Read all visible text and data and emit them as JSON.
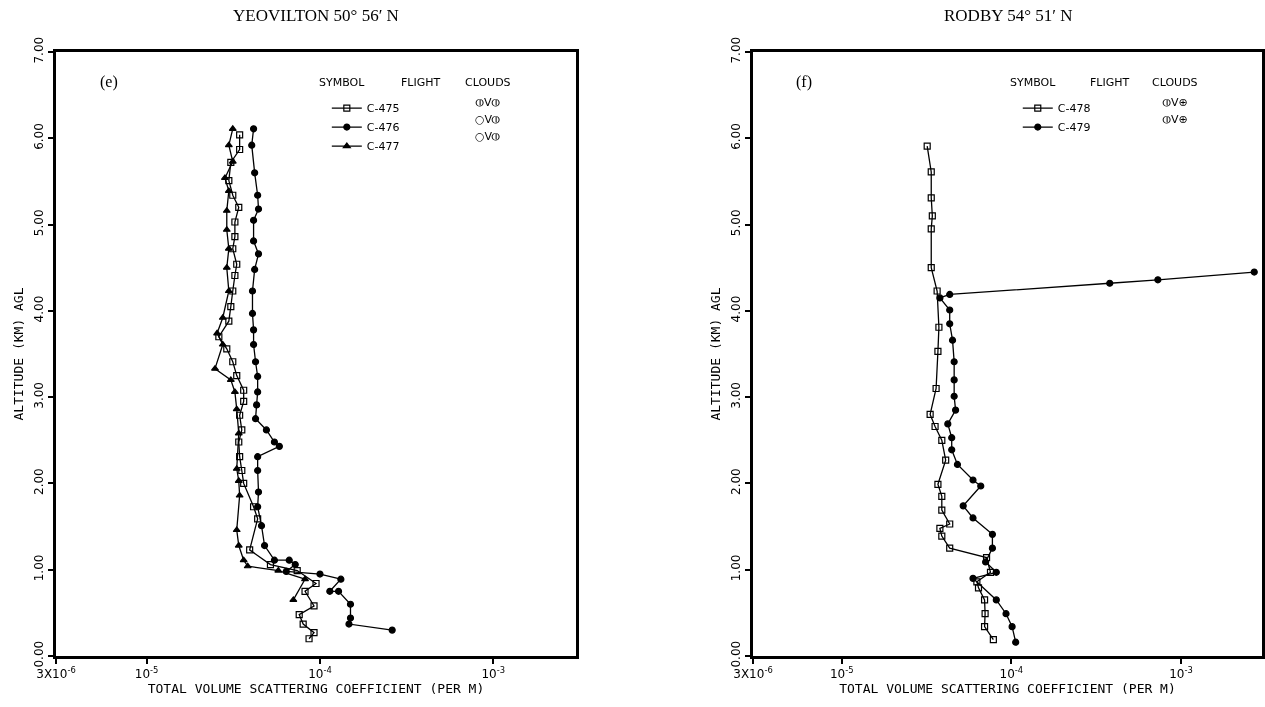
{
  "chart_data": [
    {
      "type": "line",
      "title": "YEOVILTON 50° 56′ N",
      "xlabel": "TOTAL VOLUME SCATTERING COEFFICIENT (PER M)",
      "ylabel": "ALTITUDE (KM) AGL",
      "log": "x",
      "legend": "top right",
      "xlim": [
        3e-06,
        0.003
      ],
      "xticks": [
        {
          "value": 3e-06,
          "label": "3X10$^{-6}$"
        },
        {
          "value": 1e-05,
          "label": "10$^{-5}$"
        },
        {
          "value": 0.0001,
          "label": "10$^{-4}$"
        },
        {
          "value": 0.001,
          "label": "10$^{-3}$"
        }
      ],
      "ylim": [
        0,
        7
      ],
      "yticks": [
        {
          "value": 0,
          "label": "0.00"
        },
        {
          "value": 1,
          "label": "1.00"
        },
        {
          "value": 2,
          "label": "2.00"
        },
        {
          "value": 3,
          "label": "3.00"
        },
        {
          "value": 4,
          "label": "4.00"
        },
        {
          "value": 5,
          "label": "5.00"
        },
        {
          "value": 6,
          "label": "6.00"
        },
        {
          "value": 7,
          "label": "7.00"
        }
      ],
      "annotations": [
        "(e)",
        "SYMBOL",
        "FLIGHT",
        "CLOUDS",
        "⦶V⦶",
        "○V⦶",
        "○V⦶"
      ],
      "series": [
        {
          "name": "C-475",
          "color": "#000000",
          "marker": "square",
          "x": [
            3.44e-05,
            3.44e-05,
            3.06e-05,
            2.98e-05,
            3.14e-05,
            3.4e-05,
            3.23e-05,
            3.23e-05,
            3.14e-05,
            3.31e-05,
            3.23e-05,
            3.14e-05,
            3.06e-05,
            2.98e-05,
            2.61e-05,
            2.9e-05,
            3.14e-05,
            3.31e-05,
            3.63e-05,
            3.63e-05,
            3.44e-05,
            3.54e-05,
            3.4e-05,
            3.44e-05,
            3.54e-05,
            3.63e-05,
            4.14e-05,
            4.37e-05,
            3.93e-05,
            5.18e-05,
            7.39e-05,
            9.49e-05,
            8.2e-05,
            9.24e-05,
            7.59e-05,
            8e-05,
            9.24e-05,
            8.65e-05
          ],
          "values": [
            6.04,
            5.87,
            5.72,
            5.51,
            5.34,
            5.2,
            5.03,
            4.86,
            4.72,
            4.54,
            4.41,
            4.23,
            4.05,
            3.88,
            3.7,
            3.56,
            3.41,
            3.25,
            3.08,
            2.95,
            2.79,
            2.62,
            2.48,
            2.31,
            2.15,
            2.0,
            1.73,
            1.59,
            1.23,
            1.06,
            0.99,
            0.84,
            0.75,
            0.58,
            0.48,
            0.37,
            0.27,
            0.2
          ]
        },
        {
          "name": "C-476",
          "color": "#000000",
          "marker": "circle",
          "x": [
            4.14e-05,
            4.04e-05,
            4.2e-05,
            4.37e-05,
            4.42e-05,
            4.14e-05,
            4.14e-05,
            4.42e-05,
            4.2e-05,
            4.08e-05,
            4.08e-05,
            4.14e-05,
            4.14e-05,
            4.25e-05,
            4.37e-05,
            4.37e-05,
            4.31e-05,
            4.25e-05,
            4.91e-05,
            5.46e-05,
            5.83e-05,
            4.37e-05,
            4.37e-05,
            4.42e-05,
            4.37e-05,
            4.6e-05,
            4.79e-05,
            5.46e-05,
            6.65e-05,
            7.2e-05,
            6.39e-05,
            0.0001,
            0.000132,
            0.000114,
            0.000128,
            0.00015,
            0.00015,
            0.000147,
            0.000261
          ],
          "values": [
            6.11,
            5.92,
            5.6,
            5.34,
            5.18,
            5.05,
            4.81,
            4.66,
            4.48,
            4.23,
            3.97,
            3.78,
            3.61,
            3.41,
            3.24,
            3.06,
            2.91,
            2.75,
            2.62,
            2.48,
            2.43,
            2.31,
            2.15,
            1.9,
            1.73,
            1.51,
            1.28,
            1.11,
            1.11,
            1.06,
            0.98,
            0.95,
            0.89,
            0.75,
            0.75,
            0.6,
            0.44,
            0.37,
            0.3
          ]
        },
        {
          "name": "C-477",
          "color": "#000000",
          "marker": "triangle",
          "x": [
            3.14e-05,
            2.98e-05,
            3.14e-05,
            2.83e-05,
            2.98e-05,
            2.9e-05,
            2.9e-05,
            2.98e-05,
            2.9e-05,
            2.98e-05,
            2.75e-05,
            2.55e-05,
            2.75e-05,
            2.48e-05,
            3.06e-05,
            3.23e-05,
            3.31e-05,
            3.4e-05,
            3.31e-05,
            3.4e-05,
            3.44e-05,
            3.31e-05,
            3.4e-05,
            3.63e-05,
            3.83e-05,
            5.75e-05,
            8.2e-05,
            7.02e-05
          ],
          "values": [
            6.11,
            5.92,
            5.73,
            5.54,
            5.39,
            5.16,
            4.94,
            4.72,
            4.5,
            4.23,
            3.92,
            3.74,
            3.61,
            3.33,
            3.2,
            3.06,
            2.86,
            2.58,
            2.17,
            2.03,
            1.86,
            1.46,
            1.28,
            1.11,
            1.04,
            0.99,
            0.89,
            0.65
          ]
        }
      ]
    },
    {
      "type": "line",
      "title": "RODBY 54° 51′ N",
      "xlabel": "TOTAL VOLUME SCATTERING COEFFICIENT (PER M)",
      "ylabel": "ALTITUDE (KM) AGL",
      "log": "x",
      "legend": "top right",
      "xlim": [
        3e-06,
        0.003
      ],
      "xticks": [
        {
          "value": 3e-06,
          "label": "3X10$^{-6}$"
        },
        {
          "value": 1e-05,
          "label": "10$^{-5}$"
        },
        {
          "value": 0.0001,
          "label": "10$^{-4}$"
        },
        {
          "value": 0.001,
          "label": "10$^{-3}$"
        }
      ],
      "ylim": [
        0,
        7
      ],
      "yticks": [
        {
          "value": 0,
          "label": "0.00"
        },
        {
          "value": 1,
          "label": "1.00"
        },
        {
          "value": 2,
          "label": "2.00"
        },
        {
          "value": 3,
          "label": "3.00"
        },
        {
          "value": 4,
          "label": "4.00"
        },
        {
          "value": 5,
          "label": "5.00"
        },
        {
          "value": 6,
          "label": "6.00"
        },
        {
          "value": 7,
          "label": "7.00"
        }
      ],
      "annotations": [
        "(f)",
        "SYMBOL",
        "FLIGHT",
        "CLOUDS",
        "⦶V⊕",
        "⦶V⊕"
      ],
      "series": [
        {
          "name": "C-478",
          "color": "#000000",
          "marker": "square",
          "x": [
            3.19e-05,
            3.37e-05,
            3.37e-05,
            3.42e-05,
            3.37e-05,
            3.37e-05,
            3.65e-05,
            3.74e-05,
            3.69e-05,
            3.6e-05,
            3.32e-05,
            3.55e-05,
            3.89e-05,
            4.1e-05,
            3.69e-05,
            3.89e-05,
            3.89e-05,
            4.33e-05,
            3.79e-05,
            3.89e-05,
            4.33e-05,
            7.14e-05,
            7.53e-05,
            6.26e-05,
            6.4e-05,
            6.95e-05,
            7e-05,
            6.95e-05,
            7.83e-05
          ],
          "values": [
            5.91,
            5.61,
            5.31,
            5.1,
            4.95,
            4.5,
            4.23,
            3.81,
            3.53,
            3.1,
            2.8,
            2.66,
            2.5,
            2.27,
            1.99,
            1.85,
            1.69,
            1.53,
            1.48,
            1.39,
            1.25,
            1.14,
            0.97,
            0.86,
            0.79,
            0.65,
            0.49,
            0.34,
            0.19
          ]
        },
        {
          "name": "C-479",
          "color": "#000000",
          "marker": "circle",
          "x": [
            0.000106,
            0.000101,
            9.3e-05,
            8.15e-05,
            5.94e-05,
            8.15e-05,
            7.05e-05,
            7.73e-05,
            7.73e-05,
            5.94e-05,
            5.2e-05,
            6.6e-05,
            5.94e-05,
            4.81e-05,
            4.45e-05,
            4.45e-05,
            4.22e-05,
            4.69e-05,
            4.6e-05,
            4.6e-05,
            4.6e-05,
            4.5e-05,
            4.33e-05,
            4.33e-05,
            3.79e-05,
            4.33e-05,
            0.00038,
            0.00073,
            0.0027
          ],
          "values": [
            0.16,
            0.34,
            0.49,
            0.65,
            0.9,
            0.97,
            1.09,
            1.25,
            1.41,
            1.6,
            1.74,
            1.97,
            2.04,
            2.22,
            2.39,
            2.53,
            2.69,
            2.85,
            3.01,
            3.2,
            3.41,
            3.66,
            3.85,
            4.01,
            4.15,
            4.19,
            4.32,
            4.36,
            4.45
          ]
        }
      ]
    }
  ]
}
